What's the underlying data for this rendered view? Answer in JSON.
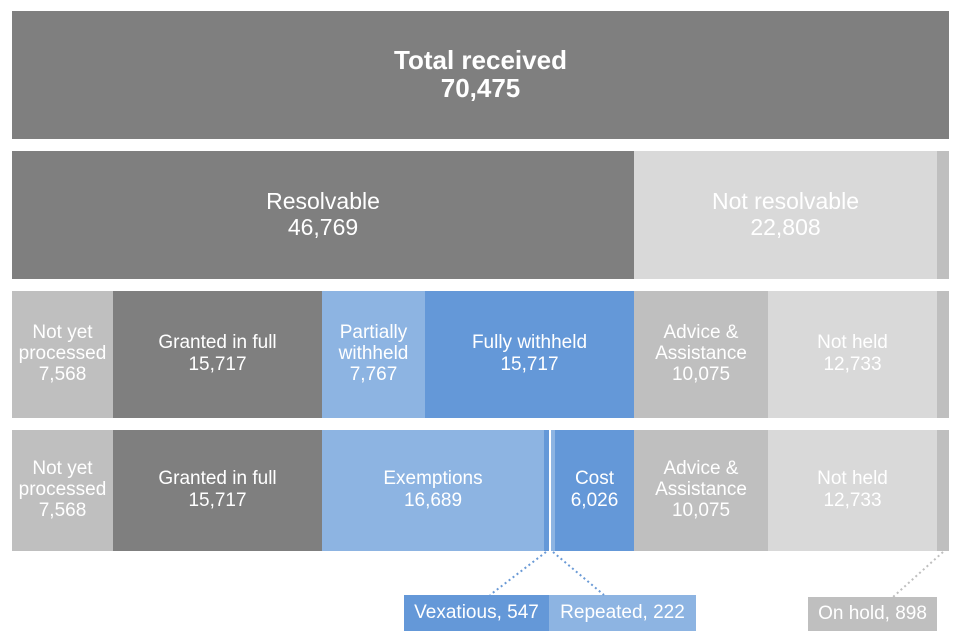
{
  "chart_data": {
    "type": "treemap-flow",
    "title": "",
    "rows": [
      {
        "segments": [
          {
            "label": "Total received",
            "value": "70,475",
            "n": 70475,
            "color": "#7f7f7f"
          }
        ]
      },
      {
        "segments": [
          {
            "label": "Resolvable",
            "value": "46,769",
            "n": 46769,
            "color": "#7f7f7f"
          },
          {
            "label": "Not resolvable",
            "value": "22,808",
            "n": 22808,
            "color": "#d9d9d9"
          },
          {
            "label": "",
            "value": "",
            "n": 898,
            "color": "#bfbfbf"
          }
        ]
      },
      {
        "segments": [
          {
            "label": "Not yet\nprocessed",
            "value": "7,568",
            "n": 7568,
            "color": "#bfbfbf"
          },
          {
            "label": "Granted in full",
            "value": "15,717",
            "n": 15717,
            "color": "#7f7f7f"
          },
          {
            "label": "Partially\nwithheld",
            "value": "7,767",
            "n": 7767,
            "color": "#8db4e2"
          },
          {
            "label": "Fully withheld",
            "value": "15,717",
            "n": 15717,
            "color": "#6498d8"
          },
          {
            "label": "Advice &\nAssistance",
            "value": "10,075",
            "n": 10075,
            "color": "#bfbfbf"
          },
          {
            "label": "Not held",
            "value": "12,733",
            "n": 12733,
            "color": "#d9d9d9"
          },
          {
            "label": "",
            "value": "",
            "n": 898,
            "color": "#bfbfbf"
          }
        ]
      },
      {
        "segments": [
          {
            "label": "Not yet\nprocessed",
            "value": "7,568",
            "n": 7568,
            "color": "#bfbfbf"
          },
          {
            "label": "Granted in full",
            "value": "15,717",
            "n": 15717,
            "color": "#7f7f7f"
          },
          {
            "label": "Exemptions",
            "value": "16,689",
            "n": 16689,
            "color": "#8db4e2"
          },
          {
            "label": "",
            "value": "",
            "n": 547,
            "color": "#6498d8"
          },
          {
            "label": "",
            "value": "",
            "n": 222,
            "color": "#8db4e2"
          },
          {
            "label": "Cost",
            "value": "6,026",
            "n": 6026,
            "color": "#6498d8"
          },
          {
            "label": "Advice &\nAssistance",
            "value": "10,075",
            "n": 10075,
            "color": "#bfbfbf"
          },
          {
            "label": "Not held",
            "value": "12,733",
            "n": 12733,
            "color": "#d9d9d9"
          },
          {
            "label": "",
            "value": "",
            "n": 898,
            "color": "#bfbfbf"
          }
        ]
      }
    ],
    "callouts": [
      {
        "text": "Vexatious, 547",
        "color": "#6498d8"
      },
      {
        "text": "Repeated, 222",
        "color": "#8db4e2"
      },
      {
        "text": "On hold, 898",
        "color": "#bfbfbf"
      }
    ],
    "leader_color": "#6a9ad6"
  }
}
